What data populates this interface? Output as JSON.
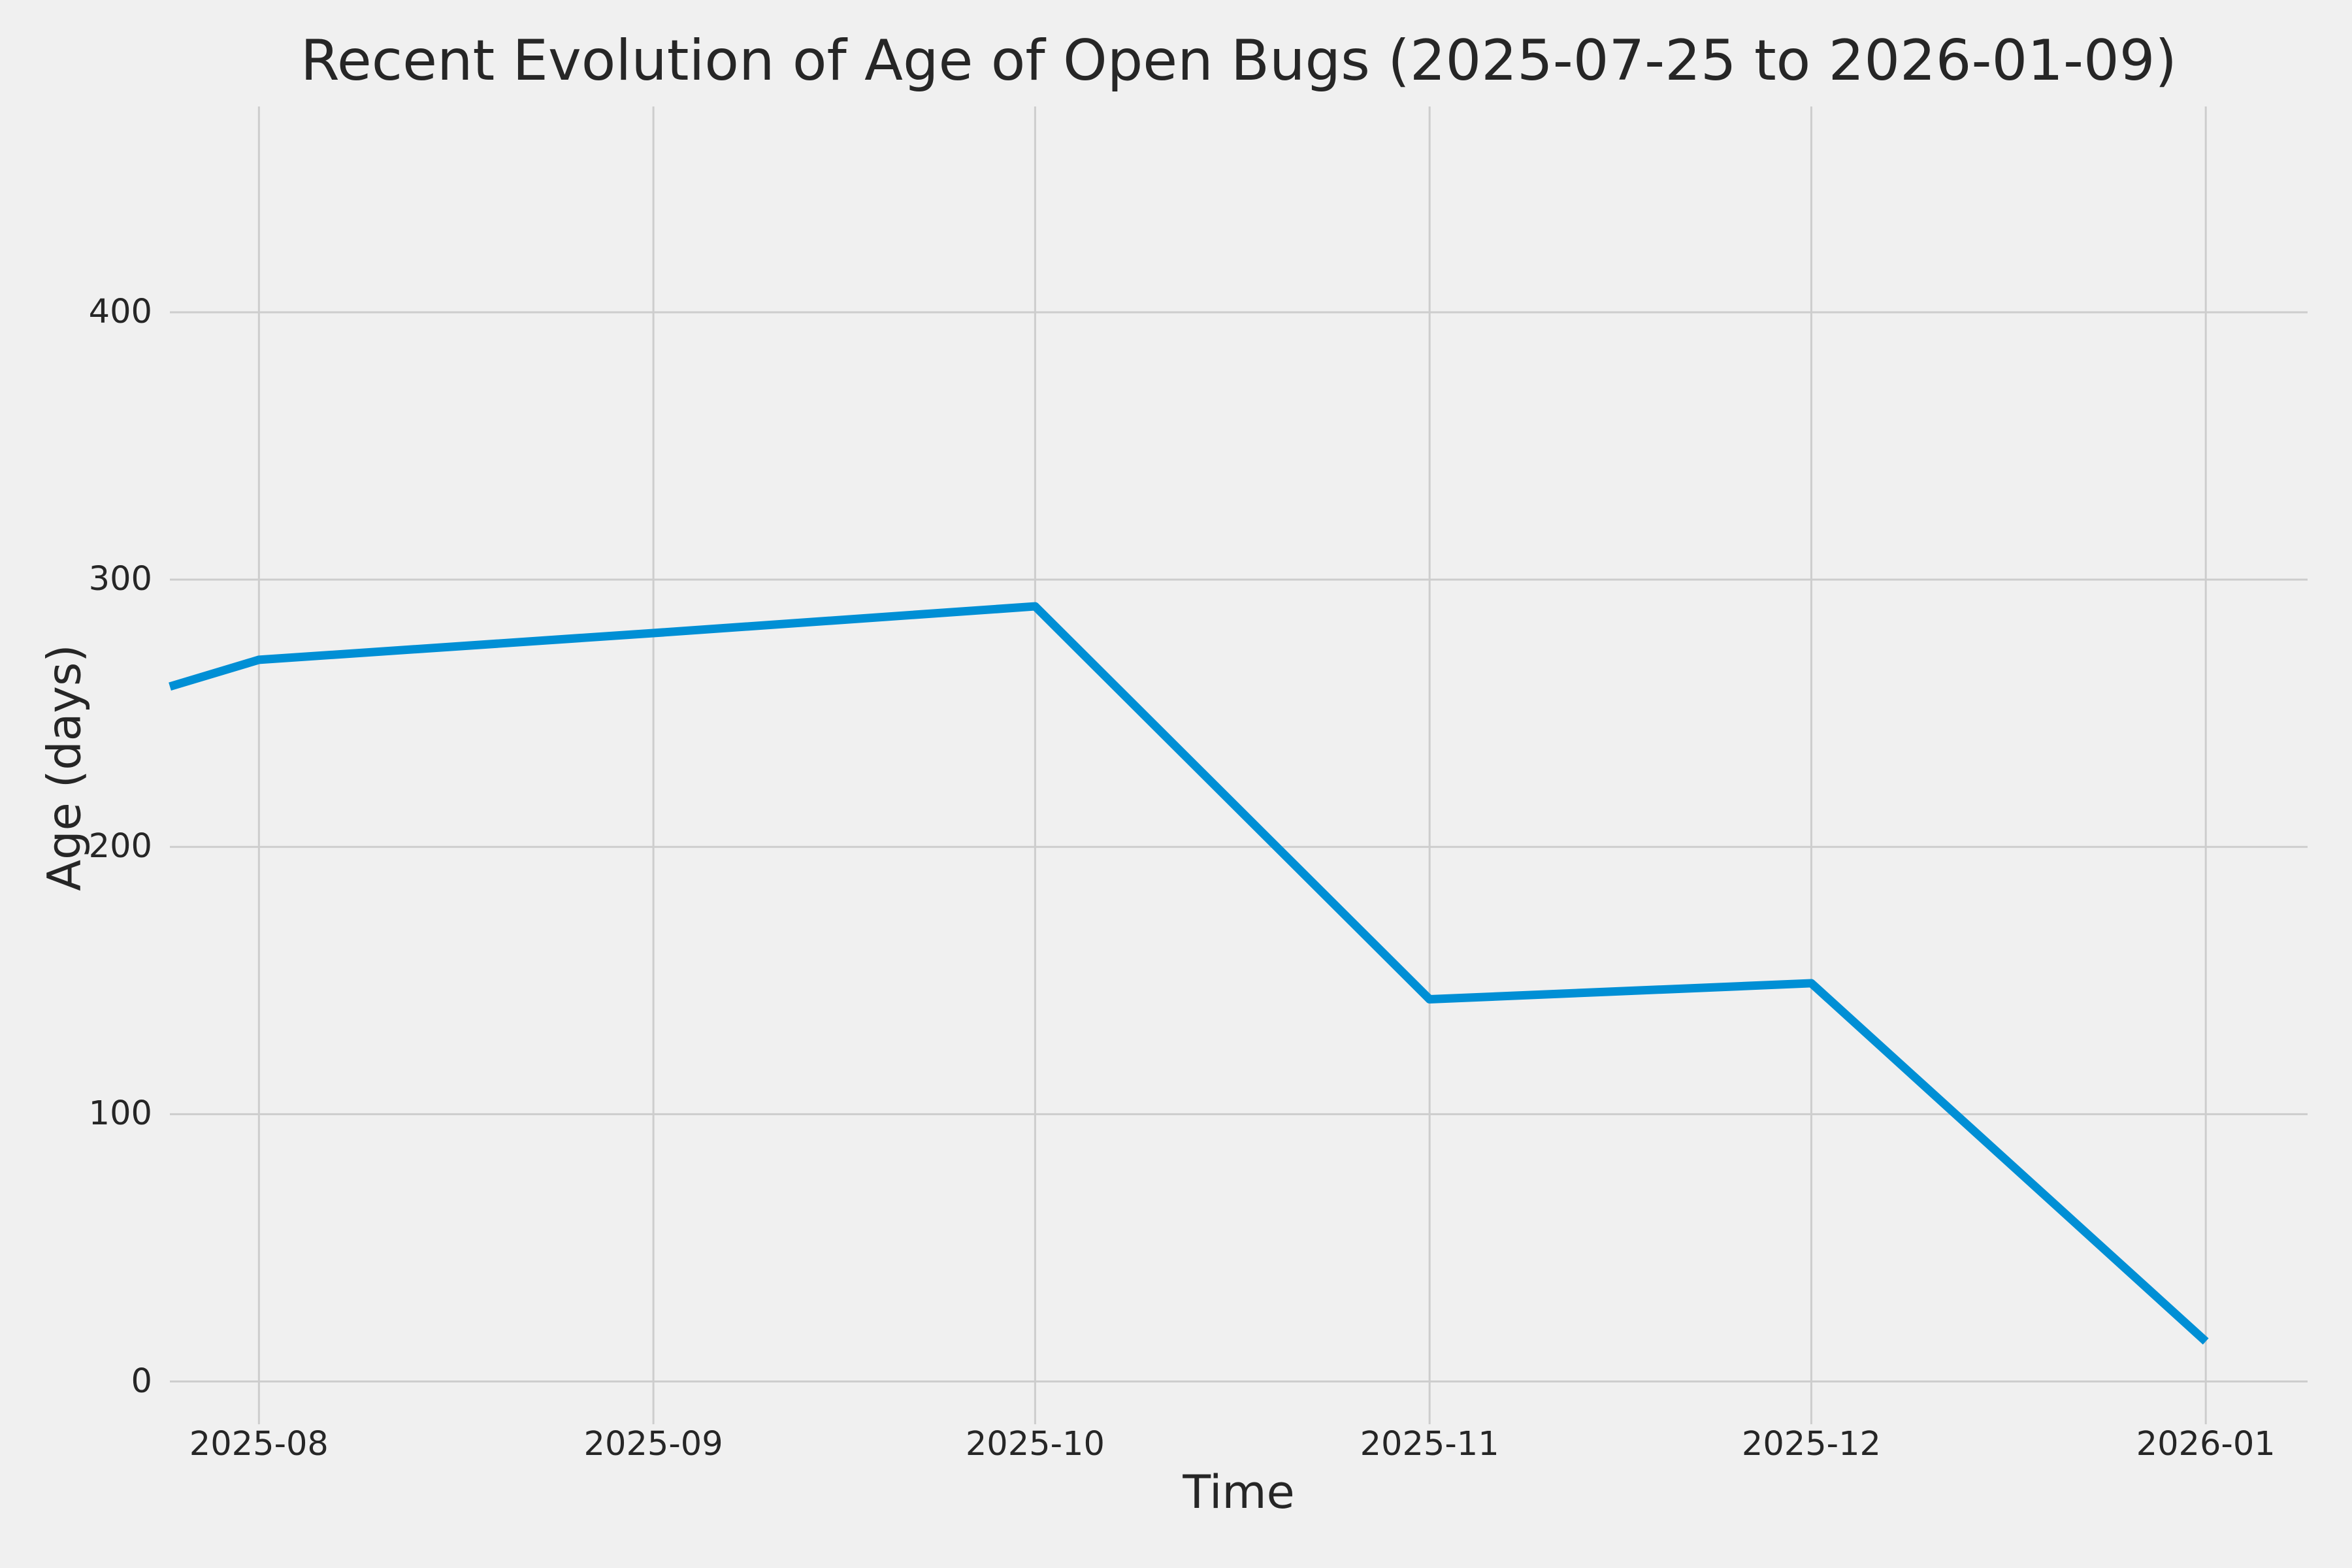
{
  "chart_data": {
    "type": "line",
    "title": "Recent Evolution of Age of Open Bugs (2025-07-25 to 2026-01-09)",
    "xlabel": "Time",
    "ylabel": "Age (days)",
    "grid": true,
    "legend": false,
    "xlim": [
      "2025-07-25",
      "2026-01-09"
    ],
    "ylim": [
      -16,
      477
    ],
    "x_ticks": [
      {
        "date": "2025-08-01",
        "label": "2025-08"
      },
      {
        "date": "2025-09-01",
        "label": "2025-09"
      },
      {
        "date": "2025-10-01",
        "label": "2025-10"
      },
      {
        "date": "2025-11-01",
        "label": "2025-11"
      },
      {
        "date": "2025-12-01",
        "label": "2025-12"
      },
      {
        "date": "2026-01-01",
        "label": "2026-01"
      }
    ],
    "y_ticks": [
      {
        "value": 0,
        "label": "0"
      },
      {
        "value": 100,
        "label": "100"
      },
      {
        "value": 200,
        "label": "200"
      },
      {
        "value": 300,
        "label": "300"
      },
      {
        "value": 400,
        "label": "400"
      }
    ],
    "series": [
      {
        "name": "age-of-open-bugs",
        "points": [
          {
            "date": "2025-07-25",
            "value": 260
          },
          {
            "date": "2025-08-01",
            "value": 270
          },
          {
            "date": "2025-09-01",
            "value": 280
          },
          {
            "date": "2025-10-01",
            "value": 290
          },
          {
            "date": "2025-11-01",
            "value": 143
          },
          {
            "date": "2025-12-01",
            "value": 149
          },
          {
            "date": "2026-01-01",
            "value": 15
          }
        ]
      }
    ],
    "colors": {
      "line": "#008fd5",
      "background": "#f0f0f0",
      "grid": "#cdcdcd",
      "text": "#262626"
    }
  }
}
